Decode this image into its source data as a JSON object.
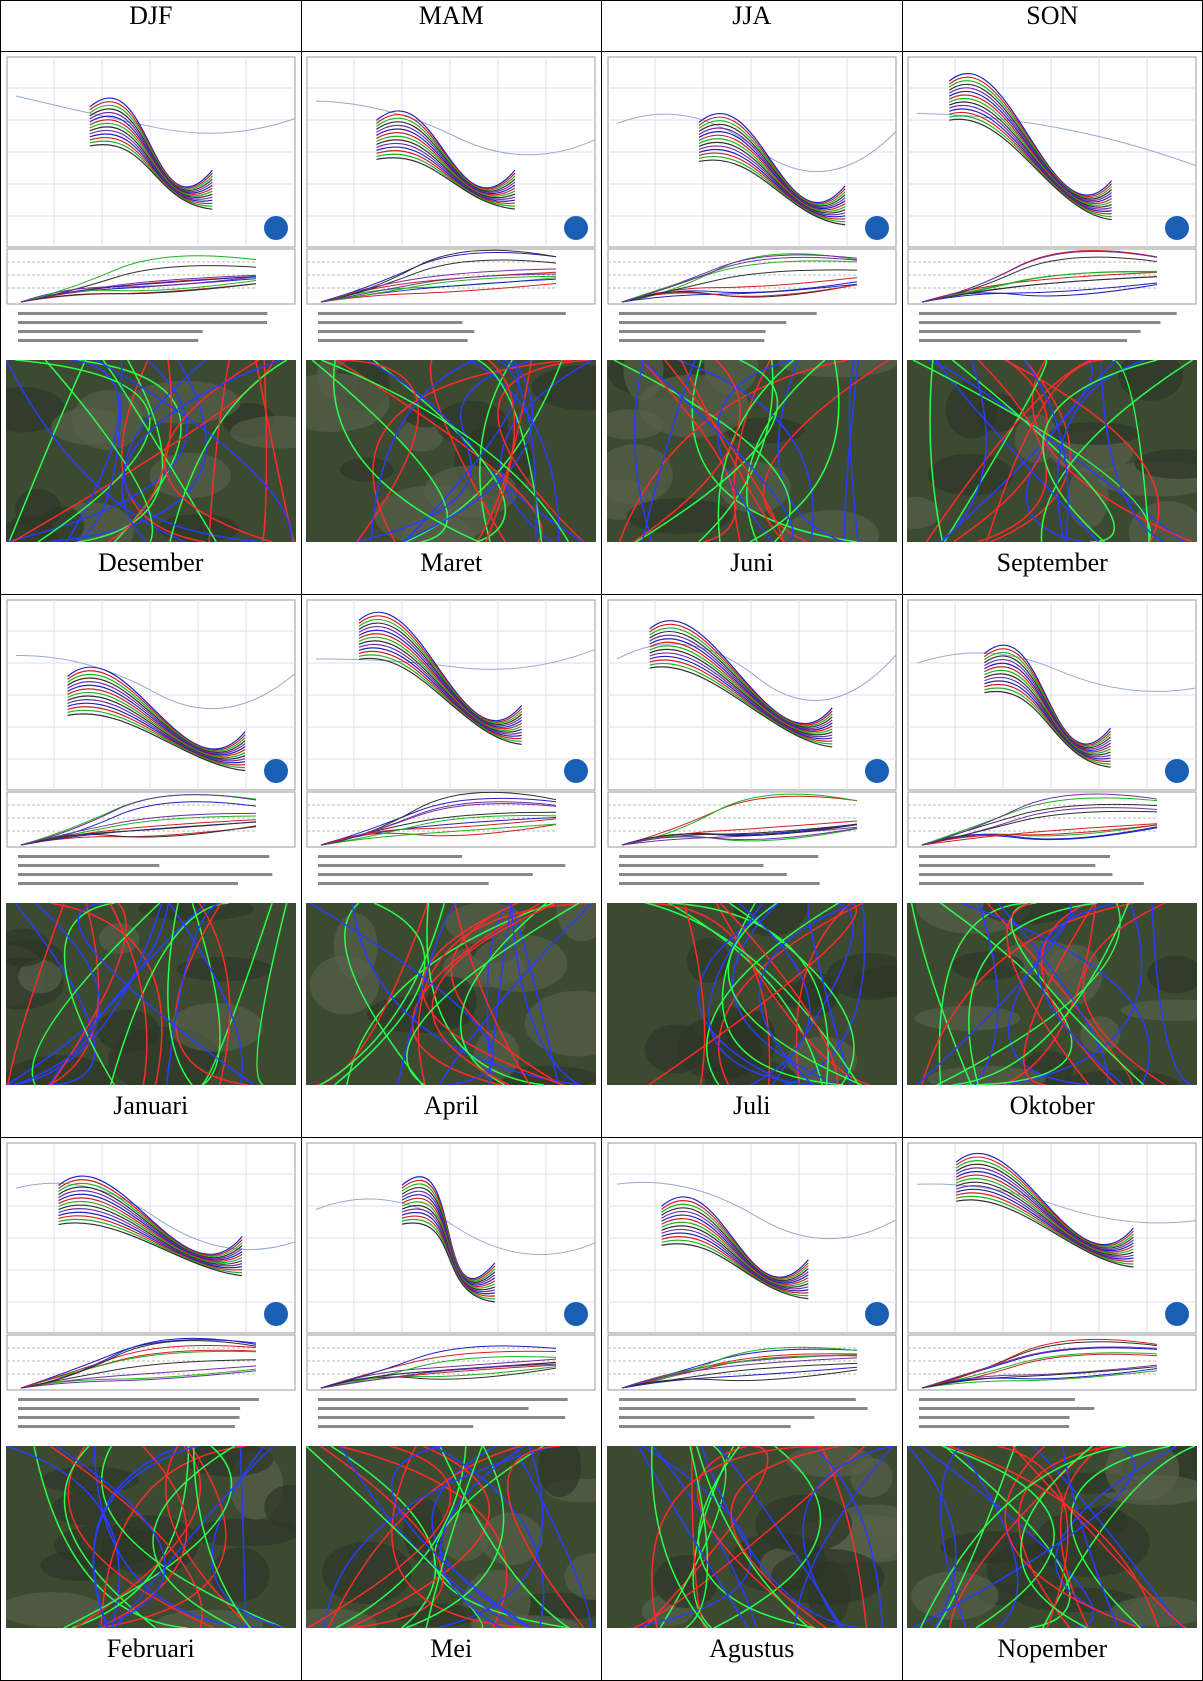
{
  "table": {
    "header": [
      "DJF",
      "MAM",
      "JJA",
      "SON"
    ],
    "rows": [
      [
        "Desember",
        "Maret",
        "Juni",
        "September"
      ],
      [
        "Januari",
        "April",
        "Juli",
        "Oktober"
      ],
      [
        "Februari",
        "Mei",
        "Agustus",
        "Nopember"
      ]
    ]
  }
}
